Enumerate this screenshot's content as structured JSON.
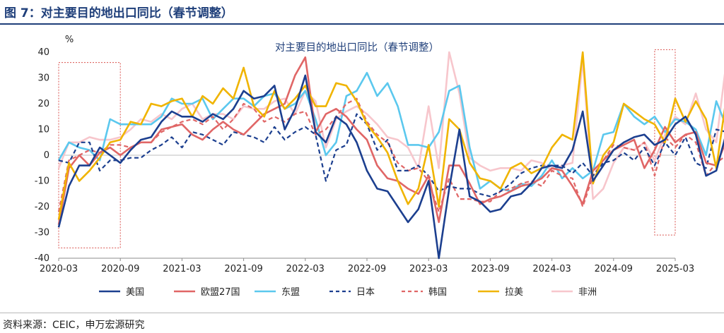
{
  "page": {
    "figure_title": "图 7：对主要目的地出口同比（春节调整）",
    "source": "资料来源：CEIC，申万宏源研究"
  },
  "chart_data": {
    "type": "line",
    "title": "对主要目的地出口同比（春节调整）",
    "ylabel": "%",
    "ylim": [
      -40,
      40
    ],
    "yticks": [
      -40,
      -30,
      -20,
      -10,
      0,
      10,
      20,
      30,
      40
    ],
    "x_start": "2020-03",
    "x_tick_labels": [
      "2020-03",
      "2020-09",
      "2021-03",
      "2021-09",
      "2022-03",
      "2022-09",
      "2023-03",
      "2023-09",
      "2024-03",
      "2024-09",
      "2025-03"
    ],
    "highlight_boxes": [
      {
        "from": "2020-03",
        "to": "2020-09",
        "ymin": -36,
        "ymax": 36
      },
      {
        "from": "2025-01",
        "to": "2025-03",
        "ymin": -31,
        "ymax": 41
      }
    ],
    "series": [
      {
        "name": "美国",
        "color": "#1c3f8f",
        "dash": "solid",
        "values": [
          -28,
          -12,
          -4,
          -4,
          3,
          0,
          -3,
          2,
          6,
          7,
          13,
          17,
          15,
          15,
          13,
          16,
          14,
          18,
          25,
          22,
          23,
          27,
          10,
          18,
          31,
          9,
          5,
          15,
          12,
          5,
          -6,
          -13,
          -14,
          -20,
          -26,
          -21,
          -10,
          -40,
          -13,
          10,
          -16,
          -18,
          -22,
          -21,
          -16,
          -15,
          -11,
          -5,
          -4,
          -5,
          2,
          17,
          -10,
          -4,
          2,
          5,
          7,
          8,
          4,
          6,
          12,
          15,
          8,
          -8,
          -6,
          9
        ]
      },
      {
        "name": "欧盟27国",
        "color": "#e06666",
        "dash": "solid",
        "values": [
          -27,
          -5,
          0,
          -4,
          1,
          3,
          0,
          3,
          5,
          5,
          10,
          11,
          12,
          8,
          6,
          10,
          13,
          10,
          8,
          12,
          16,
          18,
          20,
          31,
          38,
          9,
          16,
          18,
          15,
          10,
          6,
          -4,
          -9,
          -10,
          -13,
          -15,
          -8,
          -26,
          -4,
          -4,
          -11,
          -19,
          -17,
          -16,
          -14,
          -12,
          -11,
          -9,
          -5,
          -6,
          -12,
          -19,
          -6,
          -2,
          2,
          4,
          6,
          -5,
          2,
          11,
          5,
          8,
          9,
          -3,
          -4,
          6
        ]
      },
      {
        "name": "东盟",
        "color": "#5bc8ee",
        "dash": "solid",
        "values": [
          -2,
          5,
          3,
          2,
          -2,
          14,
          12,
          12,
          12,
          12,
          15,
          22,
          20,
          20,
          22,
          14,
          18,
          22,
          22,
          19,
          23,
          24,
          18,
          20,
          25,
          14,
          0,
          5,
          23,
          25,
          32,
          23,
          28,
          19,
          4,
          4,
          3,
          9,
          25,
          27,
          3,
          -13,
          -10,
          -13,
          -14,
          -11,
          -12,
          -8,
          -2,
          -9,
          -5,
          -9,
          -6,
          8,
          9,
          20,
          15,
          12,
          15,
          9,
          14,
          13,
          10,
          0,
          21,
          11
        ]
      },
      {
        "name": "日本",
        "color": "#1c3f8f",
        "dash": "dash",
        "values": [
          -2,
          -3,
          5,
          5,
          -6,
          -2,
          -2,
          -1,
          -1,
          2,
          4,
          7,
          3,
          9,
          8,
          6,
          4,
          9,
          8,
          7,
          5,
          11,
          6,
          9,
          11,
          8,
          -10,
          2,
          4,
          16,
          12,
          2,
          6,
          -6,
          -6,
          -4,
          -8,
          -14,
          -12,
          -13,
          -13,
          -15,
          -16,
          -14,
          -11,
          -7,
          -5,
          -4,
          -4,
          -4,
          -7,
          -3,
          -8,
          -3,
          -2,
          1,
          -2,
          3,
          -4,
          5,
          0,
          7,
          -3,
          -5,
          10,
          9
        ]
      },
      {
        "name": "韩国",
        "color": "#e06666",
        "dash": "dash",
        "values": [
          -22,
          -2,
          0,
          2,
          1,
          4,
          4,
          3,
          5,
          5,
          9,
          11,
          13,
          14,
          12,
          15,
          10,
          14,
          20,
          18,
          13,
          15,
          13,
          16,
          17,
          8,
          10,
          15,
          20,
          22,
          13,
          8,
          5,
          -3,
          -6,
          -5,
          -10,
          -22,
          -9,
          -17,
          -17,
          -18,
          -18,
          -14,
          -13,
          -11,
          -10,
          -12,
          -6,
          -8,
          -9,
          -20,
          -8,
          -2,
          4,
          3,
          2,
          5,
          -8,
          7,
          3,
          8,
          5,
          -8,
          -3,
          0
        ]
      },
      {
        "name": "拉美",
        "color": "#f0b400",
        "dash": "solid",
        "values": [
          -25,
          -3,
          -10,
          -6,
          -1,
          5,
          6,
          13,
          12,
          20,
          19,
          21,
          22,
          15,
          23,
          20,
          26,
          22,
          34,
          19,
          15,
          25,
          18,
          22,
          27,
          19,
          19,
          28,
          27,
          21,
          12,
          7,
          1,
          -10,
          -19,
          -13,
          4,
          -20,
          14,
          10,
          -3,
          -9,
          -10,
          -13,
          -5,
          -3,
          -7,
          -5,
          3,
          8,
          6,
          40,
          -11,
          0,
          5,
          20,
          17,
          14,
          12,
          5,
          22,
          13,
          21,
          14,
          -5,
          23
        ]
      },
      {
        "name": "非洲",
        "color": "#f7c6cc",
        "dash": "solid",
        "values": [
          -5,
          5,
          5,
          7,
          6,
          6,
          7,
          10,
          14,
          13,
          16,
          14,
          18,
          20,
          14,
          16,
          16,
          14,
          19,
          18,
          18,
          21,
          22,
          16,
          25,
          21,
          3,
          14,
          17,
          19,
          16,
          12,
          7,
          6,
          3,
          -5,
          19,
          -5,
          43,
          24,
          -1,
          -4,
          -6,
          -5,
          -5,
          -6,
          -2,
          -3,
          -6,
          -4,
          -3,
          37,
          -17,
          -13,
          -3,
          3,
          2,
          5,
          -2,
          8,
          15,
          12,
          24,
          10,
          5,
          37
        ]
      }
    ]
  },
  "legend": [
    {
      "name": "美国",
      "color": "#1c3f8f",
      "dash": "solid"
    },
    {
      "name": "欧盟27国",
      "color": "#e06666",
      "dash": "solid"
    },
    {
      "name": "东盟",
      "color": "#5bc8ee",
      "dash": "solid"
    },
    {
      "name": "日本",
      "color": "#1c3f8f",
      "dash": "dash"
    },
    {
      "name": "韩国",
      "color": "#e06666",
      "dash": "dash"
    },
    {
      "name": "拉美",
      "color": "#f0b400",
      "dash": "solid"
    },
    {
      "name": "非洲",
      "color": "#f7c6cc",
      "dash": "solid"
    }
  ]
}
